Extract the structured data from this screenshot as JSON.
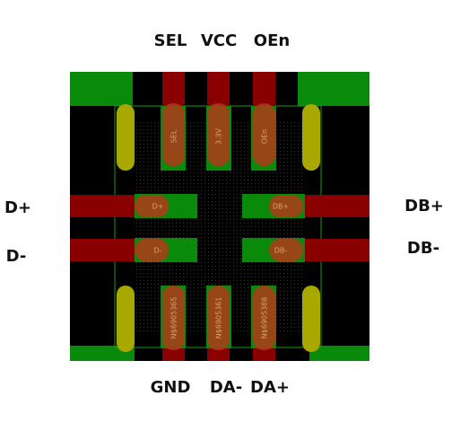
{
  "pins": {
    "top": [
      "SEL",
      "VCC",
      "OEn"
    ],
    "left": [
      "D+",
      "D-"
    ],
    "right": [
      "DB+",
      "DB-"
    ],
    "bottom": [
      "GND",
      "DA-",
      "DA+"
    ]
  },
  "pads": {
    "top": [
      "SEL",
      "3.3V",
      "OEn"
    ],
    "left": [
      "D+",
      "D-"
    ],
    "right": [
      "DB+",
      "DB-"
    ],
    "bottom": [
      "N$6905365",
      "N$6905361",
      "N$6905388"
    ]
  }
}
